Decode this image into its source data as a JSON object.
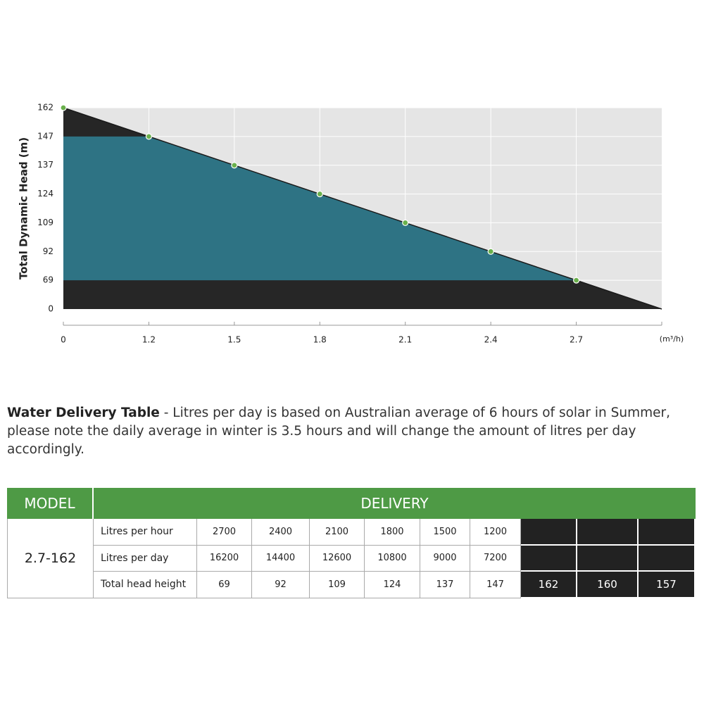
{
  "chart_data": {
    "type": "line",
    "y_label": "Total Dynamic Head (m)",
    "x_label": "(m³/h)",
    "x": [
      0,
      1.2,
      1.5,
      1.8,
      2.1,
      2.4,
      2.7
    ],
    "series": [
      {
        "color": "#6ab04c",
        "values": [
          162,
          147,
          137,
          124,
          109,
          92,
          69
        ]
      }
    ],
    "xlim": [
      0,
      3.0
    ],
    "ylim": [
      0,
      162
    ],
    "xticks": [
      0,
      1.2,
      1.5,
      1.8,
      2.1,
      2.4,
      2.7
    ],
    "yticks": [
      0,
      69,
      92,
      109,
      124,
      137,
      147,
      162
    ],
    "grid": true
  },
  "description": {
    "title": "Water Delivery Table",
    "text": " - Litres per day is based on Australian average of 6 hours of solar in Summer, please note the daily average in winter is 3.5 hours and will change the amount of litres per day accordingly."
  },
  "table": {
    "model_header": "MODEL",
    "delivery_header": "DELIVERY",
    "model": "2.7-162",
    "rows": [
      {
        "label": "Litres per hour",
        "cells": [
          2700,
          2400,
          2100,
          1800,
          1500,
          1200
        ]
      },
      {
        "label": "Litres per day",
        "cells": [
          16200,
          14400,
          12600,
          10800,
          9000,
          7200
        ]
      },
      {
        "label": "Total head height",
        "cells": [
          69,
          92,
          109,
          124,
          137,
          147
        ]
      }
    ],
    "extra_heights": [
      162,
      160,
      157
    ]
  }
}
